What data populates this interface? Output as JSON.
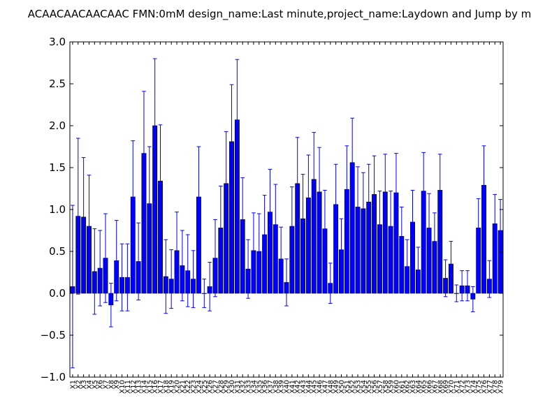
{
  "chart_data": {
    "type": "bar",
    "title": "ACAACAACAACAAC  FMN:0mM  design_name:Last minute,project_name:Laydown and Jump by m",
    "xlabel": "",
    "ylabel": "",
    "ylim": [
      -1.0,
      3.0
    ],
    "yticks": [
      "3.0",
      "2.5",
      "2.0",
      "1.5",
      "1.0",
      "0.5",
      "0.0",
      "−0.5",
      "−1.0"
    ],
    "ytick_values": [
      3.0,
      2.5,
      2.0,
      1.5,
      1.0,
      0.5,
      0.0,
      -0.5,
      -1.0
    ],
    "grid": false,
    "bar_color": "#0000ff",
    "error_color": "#0000ff",
    "categories": [
      "X1",
      "X2",
      "X3",
      "X4",
      "X5",
      "X6",
      "X7",
      "X8",
      "X9",
      "X10",
      "X11",
      "X12",
      "X13",
      "X14",
      "X15",
      "X16",
      "X17",
      "X18",
      "X19",
      "X20",
      "X21",
      "X22",
      "X23",
      "X24",
      "X25",
      "X26",
      "X27",
      "X28",
      "X29",
      "X30",
      "X31",
      "X32",
      "X33",
      "X34",
      "X35",
      "X36",
      "X37",
      "X38",
      "X39",
      "X40",
      "X41",
      "X42",
      "X43",
      "X44",
      "X45",
      "X46",
      "X47",
      "X48",
      "X49",
      "X50",
      "X51",
      "X52",
      "X53",
      "X54",
      "X55",
      "X56",
      "X57",
      "X58",
      "X59",
      "X60",
      "X61",
      "X62",
      "X63",
      "X64",
      "X65",
      "X66",
      "X67",
      "X68",
      "X69",
      "X70",
      "X71",
      "X72",
      "X73",
      "X74",
      "X75",
      "X76",
      "X77",
      "X78",
      "X79"
    ],
    "values": [
      0.08,
      0.92,
      0.91,
      0.8,
      0.26,
      0.3,
      0.42,
      -0.14,
      0.39,
      0.19,
      0.19,
      1.15,
      0.38,
      1.67,
      1.07,
      2.0,
      1.34,
      0.2,
      0.17,
      0.51,
      0.33,
      0.27,
      0.17,
      1.15,
      0.0,
      0.08,
      0.42,
      0.78,
      1.31,
      1.81,
      2.07,
      0.88,
      0.29,
      0.51,
      0.5,
      0.7,
      0.97,
      0.82,
      0.41,
      0.13,
      0.8,
      1.31,
      0.89,
      1.14,
      1.36,
      1.21,
      0.77,
      0.12,
      1.06,
      0.52,
      1.24,
      1.56,
      1.03,
      1.01,
      1.09,
      1.18,
      0.82,
      1.21,
      0.8,
      1.2,
      0.68,
      0.32,
      0.85,
      0.28,
      1.22,
      0.78,
      0.62,
      1.23,
      0.18,
      0.35,
      0.0,
      0.09,
      0.09,
      -0.07,
      0.78,
      1.29,
      0.17,
      0.83,
      0.75
    ],
    "errors": [
      0.97,
      0.93,
      0.71,
      0.61,
      0.51,
      0.45,
      0.53,
      0.26,
      0.48,
      0.4,
      0.4,
      0.67,
      0.46,
      0.74,
      0.68,
      0.8,
      0.67,
      0.44,
      0.35,
      0.46,
      0.42,
      0.43,
      0.34,
      0.6,
      0.17,
      0.29,
      0.46,
      0.5,
      0.62,
      0.68,
      0.72,
      0.5,
      0.35,
      0.45,
      0.45,
      0.47,
      0.51,
      0.48,
      0.38,
      0.28,
      0.47,
      0.55,
      0.53,
      0.51,
      0.56,
      0.53,
      0.46,
      0.24,
      0.48,
      0.37,
      0.52,
      0.53,
      0.48,
      0.43,
      0.45,
      0.46,
      0.4,
      0.45,
      0.42,
      0.47,
      0.35,
      0.32,
      0.38,
      0.27,
      0.46,
      0.41,
      0.34,
      0.43,
      0.22,
      0.27,
      0.1,
      0.18,
      0.18,
      0.15,
      0.35,
      0.47,
      0.22,
      0.35,
      0.37
    ]
  }
}
